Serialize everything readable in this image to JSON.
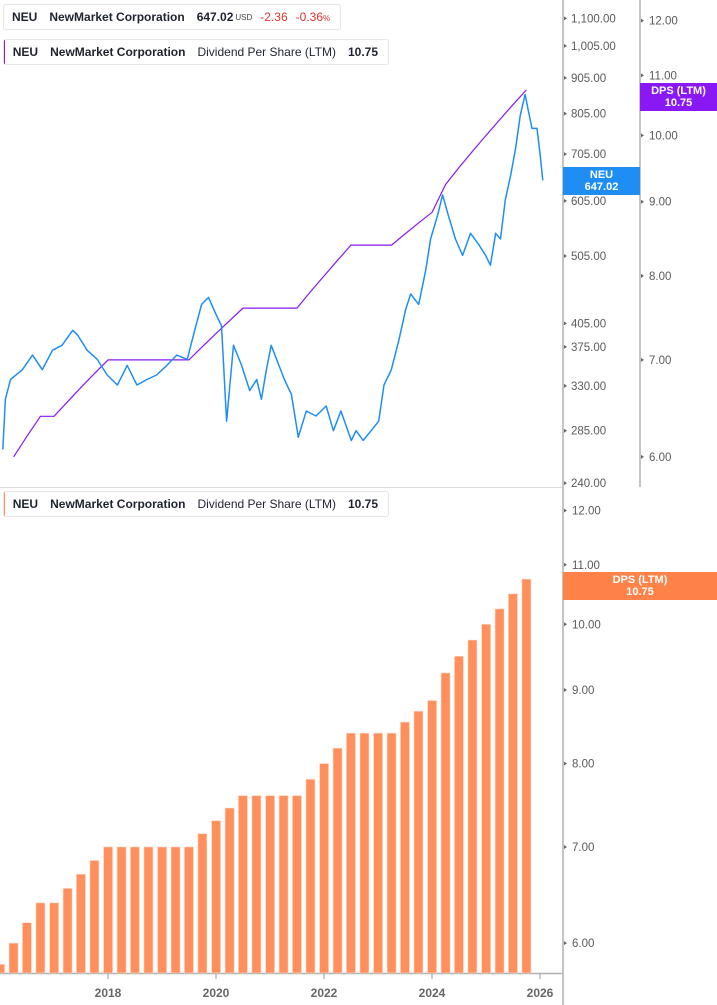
{
  "colors": {
    "price": "#1e8ef5",
    "dps_line": "#8a18f5",
    "dps_bars": "#ff8f5c",
    "negative": "#e0342f"
  },
  "legend_price": {
    "ticker": "NEU",
    "name": "NewMarket Corporation",
    "price": "647.02",
    "currency": "USD",
    "change": "-2.36",
    "change_pct": "-0.36",
    "pct_sign": "%"
  },
  "legend_dps_top": {
    "ticker": "NEU",
    "name": "NewMarket Corporation",
    "metric": "Dividend Per Share (LTM)",
    "value": "10.75"
  },
  "legend_dps_bottom": {
    "ticker": "NEU",
    "name": "NewMarket Corporation",
    "metric": "Dividend Per Share (LTM)",
    "value": "10.75"
  },
  "badges": {
    "price": {
      "line1": "NEU",
      "line2": "647.02"
    },
    "dps_top": {
      "line1": "DPS (LTM)",
      "line2": "10.75"
    },
    "dps_bottom": {
      "line1": "DPS (LTM)",
      "line2": "10.75"
    }
  },
  "chart_data": [
    {
      "type": "line",
      "scale": "log",
      "price_axis": {
        "ticks": [
          "1,100.00",
          "1,005.00",
          "905.00",
          "805.00",
          "705.00",
          "605.00",
          "505.00",
          "405.00",
          "375.00",
          "330.00",
          "285.00",
          "240.00"
        ],
        "range": [
          237,
          1168
        ]
      },
      "dps_axis": {
        "ticks": [
          "12.00",
          "11.00",
          "10.00",
          "9.00",
          "8.00",
          "7.00",
          "6.00"
        ],
        "range": [
          5.72,
          12.4
        ]
      },
      "series": [
        {
          "name": "NEU",
          "points": [
            [
              "2016-01-19",
              268
            ],
            [
              "2016-02-06",
              316
            ],
            [
              "2016-03-10",
              337
            ],
            [
              "2016-05-30",
              348
            ],
            [
              "2016-08-07",
              365
            ],
            [
              "2016-10-12",
              348
            ],
            [
              "2016-12-20",
              371
            ],
            [
              "2017-02-24",
              377
            ],
            [
              "2017-05-05",
              396
            ],
            [
              "2017-06-07",
              390
            ],
            [
              "2017-08-11",
              371
            ],
            [
              "2017-10-19",
              360
            ],
            [
              "2017-12-24",
              342
            ],
            [
              "2018-03-03",
              331
            ],
            [
              "2018-05-08",
              353
            ],
            [
              "2018-07-13",
              331
            ],
            [
              "2018-09-20",
              337
            ],
            [
              "2018-11-24",
              342
            ],
            [
              "2019-02-02",
              353
            ],
            [
              "2019-04-09",
              365
            ],
            [
              "2019-06-18",
              360
            ],
            [
              "2019-08-08",
              396
            ],
            [
              "2019-09-24",
              431
            ],
            [
              "2019-11-10",
              441
            ],
            [
              "2020-01-05",
              415
            ],
            [
              "2020-02-07",
              402
            ],
            [
              "2020-03-11",
              294
            ],
            [
              "2020-04-27",
              377
            ],
            [
              "2020-06-21",
              353
            ],
            [
              "2020-08-15",
              325
            ],
            [
              "2020-10-01",
              337
            ],
            [
              "2020-11-03",
              316
            ],
            [
              "2020-12-06",
              348
            ],
            [
              "2021-01-08",
              377
            ],
            [
              "2021-02-14",
              360
            ],
            [
              "2021-04-06",
              337
            ],
            [
              "2021-05-23",
              321
            ],
            [
              "2021-07-09",
              279
            ],
            [
              "2021-09-02",
              304
            ],
            [
              "2021-11-07",
              299
            ],
            [
              "2022-01-15",
              309
            ],
            [
              "2022-03-03",
              285
            ],
            [
              "2022-04-23",
              304
            ],
            [
              "2022-07-02",
              276
            ],
            [
              "2022-08-04",
              285
            ],
            [
              "2022-09-21",
              276
            ],
            [
              "2022-11-14",
              285
            ],
            [
              "2023-01-05",
              294
            ],
            [
              "2023-02-10",
              331
            ],
            [
              "2023-03-29",
              348
            ],
            [
              "2023-05-19",
              383
            ],
            [
              "2023-07-05",
              424
            ],
            [
              "2023-08-08",
              446
            ],
            [
              "2023-10-01",
              431
            ],
            [
              "2023-11-18",
              482
            ],
            [
              "2023-12-21",
              534
            ],
            [
              "2024-02-06",
              576
            ],
            [
              "2024-03-11",
              617
            ],
            [
              "2024-04-20",
              576
            ],
            [
              "2024-06-06",
              534
            ],
            [
              "2024-07-24",
              506
            ],
            [
              "2024-09-17",
              544
            ],
            [
              "2024-11-10",
              525
            ],
            [
              "2024-12-28",
              506
            ],
            [
              "2025-01-30",
              490
            ],
            [
              "2025-03-05",
              544
            ],
            [
              "2025-04-07",
              534
            ],
            [
              "2025-05-09",
              607
            ],
            [
              "2025-06-14",
              657
            ],
            [
              "2025-07-17",
              717
            ],
            [
              "2025-08-19",
              801
            ],
            [
              "2025-09-21",
              857
            ],
            [
              "2025-10-13",
              812
            ],
            [
              "2025-11-07",
              767
            ],
            [
              "2025-12-10",
              767
            ],
            [
              "2026-01-01",
              705
            ],
            [
              "2026-01-19",
              647.02
            ]
          ]
        },
        {
          "name": "Dividend Per Share (LTM)",
          "uses": "dividends"
        }
      ]
    },
    {
      "type": "bar",
      "scale": "log",
      "dps_axis": {
        "ticks": [
          "12.00",
          "11.00",
          "10.00",
          "9.00",
          "8.00",
          "7.00",
          "6.00"
        ],
        "range": [
          5.72,
          12.4
        ]
      },
      "x_ticks": [
        "2018",
        "2020",
        "2022",
        "2024",
        "2026"
      ],
      "dividends": {
        "dates": [
          "2015-12-31",
          "2016-03-31",
          "2016-06-30",
          "2016-09-30",
          "2016-12-31",
          "2017-03-31",
          "2017-06-30",
          "2017-09-30",
          "2017-12-31",
          "2018-03-31",
          "2018-06-30",
          "2018-09-30",
          "2018-12-31",
          "2019-03-31",
          "2019-06-30",
          "2019-09-30",
          "2019-12-31",
          "2020-03-31",
          "2020-06-30",
          "2020-09-30",
          "2020-12-31",
          "2021-03-31",
          "2021-06-30",
          "2021-09-30",
          "2021-12-31",
          "2022-03-31",
          "2022-06-30",
          "2022-09-30",
          "2022-12-31",
          "2023-03-31",
          "2023-06-30",
          "2023-09-30",
          "2023-12-31",
          "2024-03-31",
          "2024-06-30",
          "2024-09-30",
          "2024-12-31",
          "2025-03-31",
          "2025-06-30",
          "2025-09-30"
        ],
        "values": [
          5.8,
          6.0,
          6.2,
          6.4,
          6.4,
          6.55,
          6.7,
          6.85,
          7.0,
          7.0,
          7.0,
          7.0,
          7.0,
          7.0,
          7.0,
          7.15,
          7.3,
          7.45,
          7.6,
          7.6,
          7.6,
          7.6,
          7.6,
          7.8,
          8.0,
          8.2,
          8.4,
          8.4,
          8.4,
          8.4,
          8.55,
          8.7,
          8.85,
          9.25,
          9.5,
          9.75,
          10.0,
          10.25,
          10.5,
          10.75
        ]
      }
    }
  ]
}
